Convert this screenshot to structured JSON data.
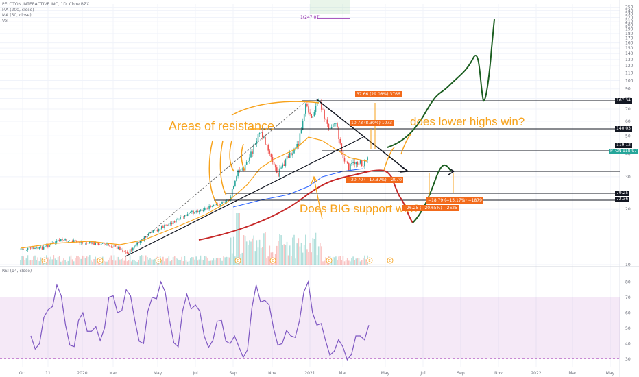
{
  "header": {
    "symbol_line": "PELOTON INTERACTIVE INC, 1D, Cboe BZX",
    "ma200": "MA (200, close)",
    "ma50": "MA (50, close)",
    "vol": "Vol",
    "rsi": "RSI (14, close)"
  },
  "top_marker": "1(247.07)",
  "annotations": {
    "resistance": "Areas of resistance",
    "lower_highs": "does lower highs win?",
    "big_support": "Does BIG support win?"
  },
  "measure_labels": [
    "37.66 (29.08%) 3766",
    "10.73 (8.30%) 1073",
    "−20.70 (−17.37%) −2070",
    "−18.79 (−15.17%) −1879",
    "−26.25 (−20.65%) −2625"
  ],
  "price_tags": [
    {
      "text": "167.34",
      "price": 167.34,
      "bg": "#131722"
    },
    {
      "text": "140.03",
      "price": 140.03,
      "bg": "#131722"
    },
    {
      "text": "119.12",
      "price": 119.12,
      "bg": "#131722"
    },
    {
      "text": "PTON",
      "price": 114.5,
      "bg": "#26a69a"
    },
    {
      "text": "118.97",
      "price": 114.5,
      "bg": "#26a69a"
    },
    {
      "text": "79.25",
      "price": 79.25,
      "bg": "#131722"
    },
    {
      "text": "72.36",
      "price": 72.36,
      "bg": "#131722"
    }
  ],
  "chart_data": {
    "type": "line",
    "title": "PELOTON INTERACTIVE INC, 1D, Cboe BZX",
    "x_ticks": [
      "Oct",
      "11",
      "2020",
      "Mar",
      "May",
      "Jul",
      "Sep",
      "Nov",
      "2021",
      "Mar",
      "May",
      "Jul",
      "Sep",
      "Nov",
      "2022",
      "Mar",
      "May"
    ],
    "price_scale": "log",
    "price_ticks": [
      250,
      240,
      230,
      220,
      210,
      200,
      190,
      180,
      170,
      160,
      150,
      140,
      130,
      120,
      110,
      100,
      90,
      80,
      70,
      60,
      50,
      40,
      30,
      20,
      10
    ],
    "rsi_ticks": [
      80,
      70,
      60,
      50,
      40,
      30
    ],
    "rsi_band": [
      30,
      70
    ],
    "horizontal_levels": [
      167.34,
      140.03,
      119.12,
      100,
      79.25,
      72.36
    ],
    "series": [
      {
        "name": "PTON",
        "values": [
          {
            "x": "2019-10",
            "y": 24
          },
          {
            "x": "2019-11",
            "y": 27
          },
          {
            "x": "2019-12",
            "y": 31
          },
          {
            "x": "2020-01",
            "y": 30
          },
          {
            "x": "2020-02",
            "y": 27
          },
          {
            "x": "2020-03",
            "y": 21
          },
          {
            "x": "2020-04",
            "y": 33
          },
          {
            "x": "2020-05",
            "y": 42
          },
          {
            "x": "2020-06",
            "y": 55
          },
          {
            "x": "2020-07",
            "y": 65
          },
          {
            "x": "2020-08",
            "y": 72
          },
          {
            "x": "2020-09",
            "y": 100
          },
          {
            "x": "2020-10",
            "y": 130
          },
          {
            "x": "2020-11",
            "y": 110
          },
          {
            "x": "2020-12",
            "y": 150
          },
          {
            "x": "2021-01",
            "y": 165
          },
          {
            "x": "2021-02",
            "y": 140
          },
          {
            "x": "2021-03",
            "y": 100
          },
          {
            "x": "2021-04",
            "y": 113
          }
        ]
      }
    ],
    "rsi_values": [
      45,
      40,
      62,
      78,
      52,
      38,
      60,
      48,
      42,
      70,
      60,
      75,
      55,
      40,
      70,
      80,
      55,
      38,
      72,
      65,
      45,
      42,
      55,
      40,
      38,
      36,
      78,
      68,
      50,
      40,
      45,
      55,
      80,
      52,
      42,
      35,
      38,
      33,
      45,
      52
    ]
  }
}
